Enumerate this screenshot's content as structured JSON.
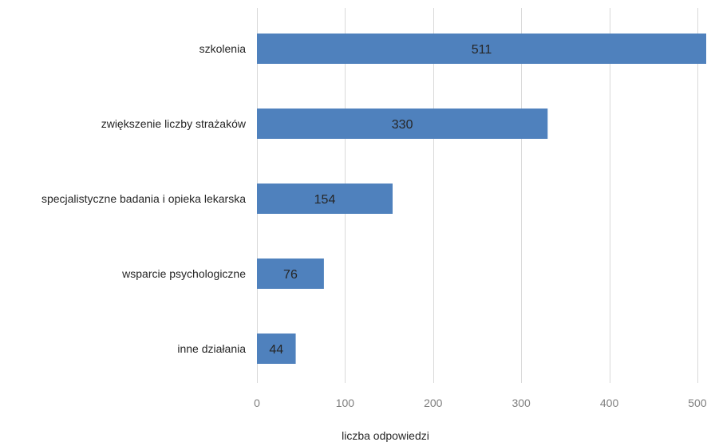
{
  "chart_data": {
    "type": "bar",
    "orientation": "horizontal",
    "categories": [
      "szkolenia",
      "zwiększenie liczby strażaków",
      "specjalistyczne badania i opieka lekarska",
      "wsparcie psychologiczne",
      "inne działania"
    ],
    "values": [
      511,
      330,
      154,
      76,
      44
    ],
    "data_labels": [
      "511",
      "330",
      "154",
      "76",
      "44"
    ],
    "title": "",
    "xlabel": "liczba odpowiedzi",
    "ylabel": "",
    "xlim": [
      0,
      510
    ],
    "xticks": [
      0,
      100,
      200,
      300,
      400,
      500
    ],
    "xtick_labels": [
      "0",
      "100",
      "200",
      "300",
      "400",
      "500"
    ],
    "grid": "vertical",
    "legend": "none",
    "bar_color": "#4f81bd"
  }
}
